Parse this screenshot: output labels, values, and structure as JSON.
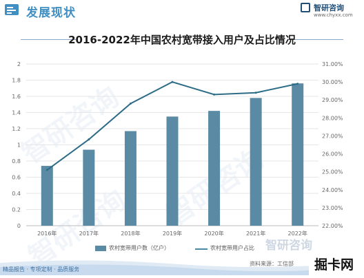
{
  "header": {
    "section_title": "发展现状",
    "brand_name": "智研咨询",
    "brand_url": "www.chyxx.com"
  },
  "watermark_text": "智研咨询",
  "footer": {
    "left_text": "精品报告 · 专项定制 · 品质服务",
    "source": "资料来源：工信部",
    "corner_text": "掘卡网",
    "brand_text": "智研咨询"
  },
  "colors": {
    "bar": "#5b8aa4",
    "line": "#2d6c86",
    "accent": "#3f8fc3",
    "axis_text": "#666666"
  },
  "chart_data": {
    "type": "bar",
    "title": "2016-2022年中国农村宽带接入用户及占比情况",
    "categories": [
      "2016年",
      "2017年",
      "2018年",
      "2019年",
      "2020年",
      "2021年",
      "2022年"
    ],
    "series": [
      {
        "name": "农村宽带用户数（亿户）",
        "type": "bar",
        "axis": "left",
        "values": [
          0.74,
          0.94,
          1.17,
          1.35,
          1.42,
          1.58,
          1.76
        ]
      },
      {
        "name": "农村宽带用户占比",
        "type": "line",
        "axis": "right",
        "values": [
          25.1,
          26.8,
          28.8,
          30.0,
          29.3,
          29.4,
          29.9
        ]
      }
    ],
    "y_left": {
      "ticks": [
        "0",
        "0.2",
        "0.4",
        "0.6",
        "0.8",
        "1",
        "1.2",
        "1.4",
        "1.6",
        "1.8",
        "2"
      ],
      "min": 0,
      "max": 2
    },
    "y_right": {
      "ticks": [
        "22.00%",
        "23.00%",
        "24.00%",
        "25.00%",
        "26.00%",
        "27.00%",
        "28.00%",
        "29.00%",
        "30.00%",
        "31.00%"
      ],
      "min": 22,
      "max": 31
    },
    "legend_position": "bottom"
  }
}
